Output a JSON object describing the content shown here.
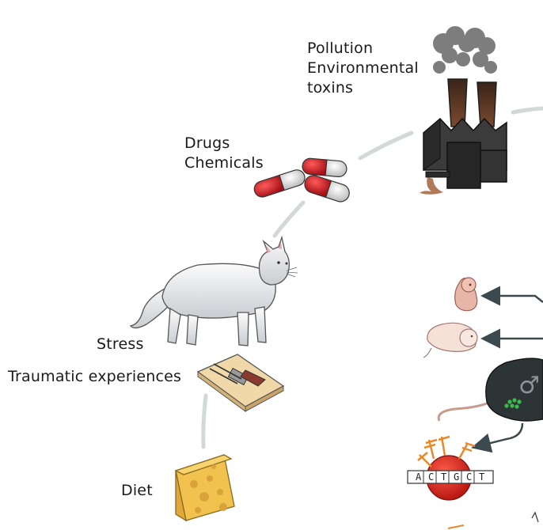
{
  "labels": {
    "pollution": "Pollution",
    "environmental_toxins": "Environmental",
    "toxins": "toxins",
    "drugs": "Drugs",
    "chemicals": "Chemicals",
    "stress": "Stress",
    "traumatic_experiences": "Traumatic experiences",
    "diet": "Diet"
  },
  "dna": {
    "sequence": [
      "A",
      "C",
      "T",
      "G",
      "C",
      "T"
    ]
  },
  "symbols": {
    "male": "♂"
  },
  "colors": {
    "path": "#d3d8d8",
    "capsule_red": "#c4161c",
    "capsule_white": "#e6e6e6",
    "factory": "#2e2e2e",
    "chimney": "#4a2e22",
    "smoke": "#7a7a7a",
    "cat": "#eceef0",
    "cheese": "#f2c24e",
    "mouse": "#2d3436",
    "embryo": "#e8b6a8",
    "pup": "#f6e1d8",
    "dna_red": "#d7261e",
    "histone_tail": "#e88a2c",
    "arrow": "#3c4a4f"
  }
}
